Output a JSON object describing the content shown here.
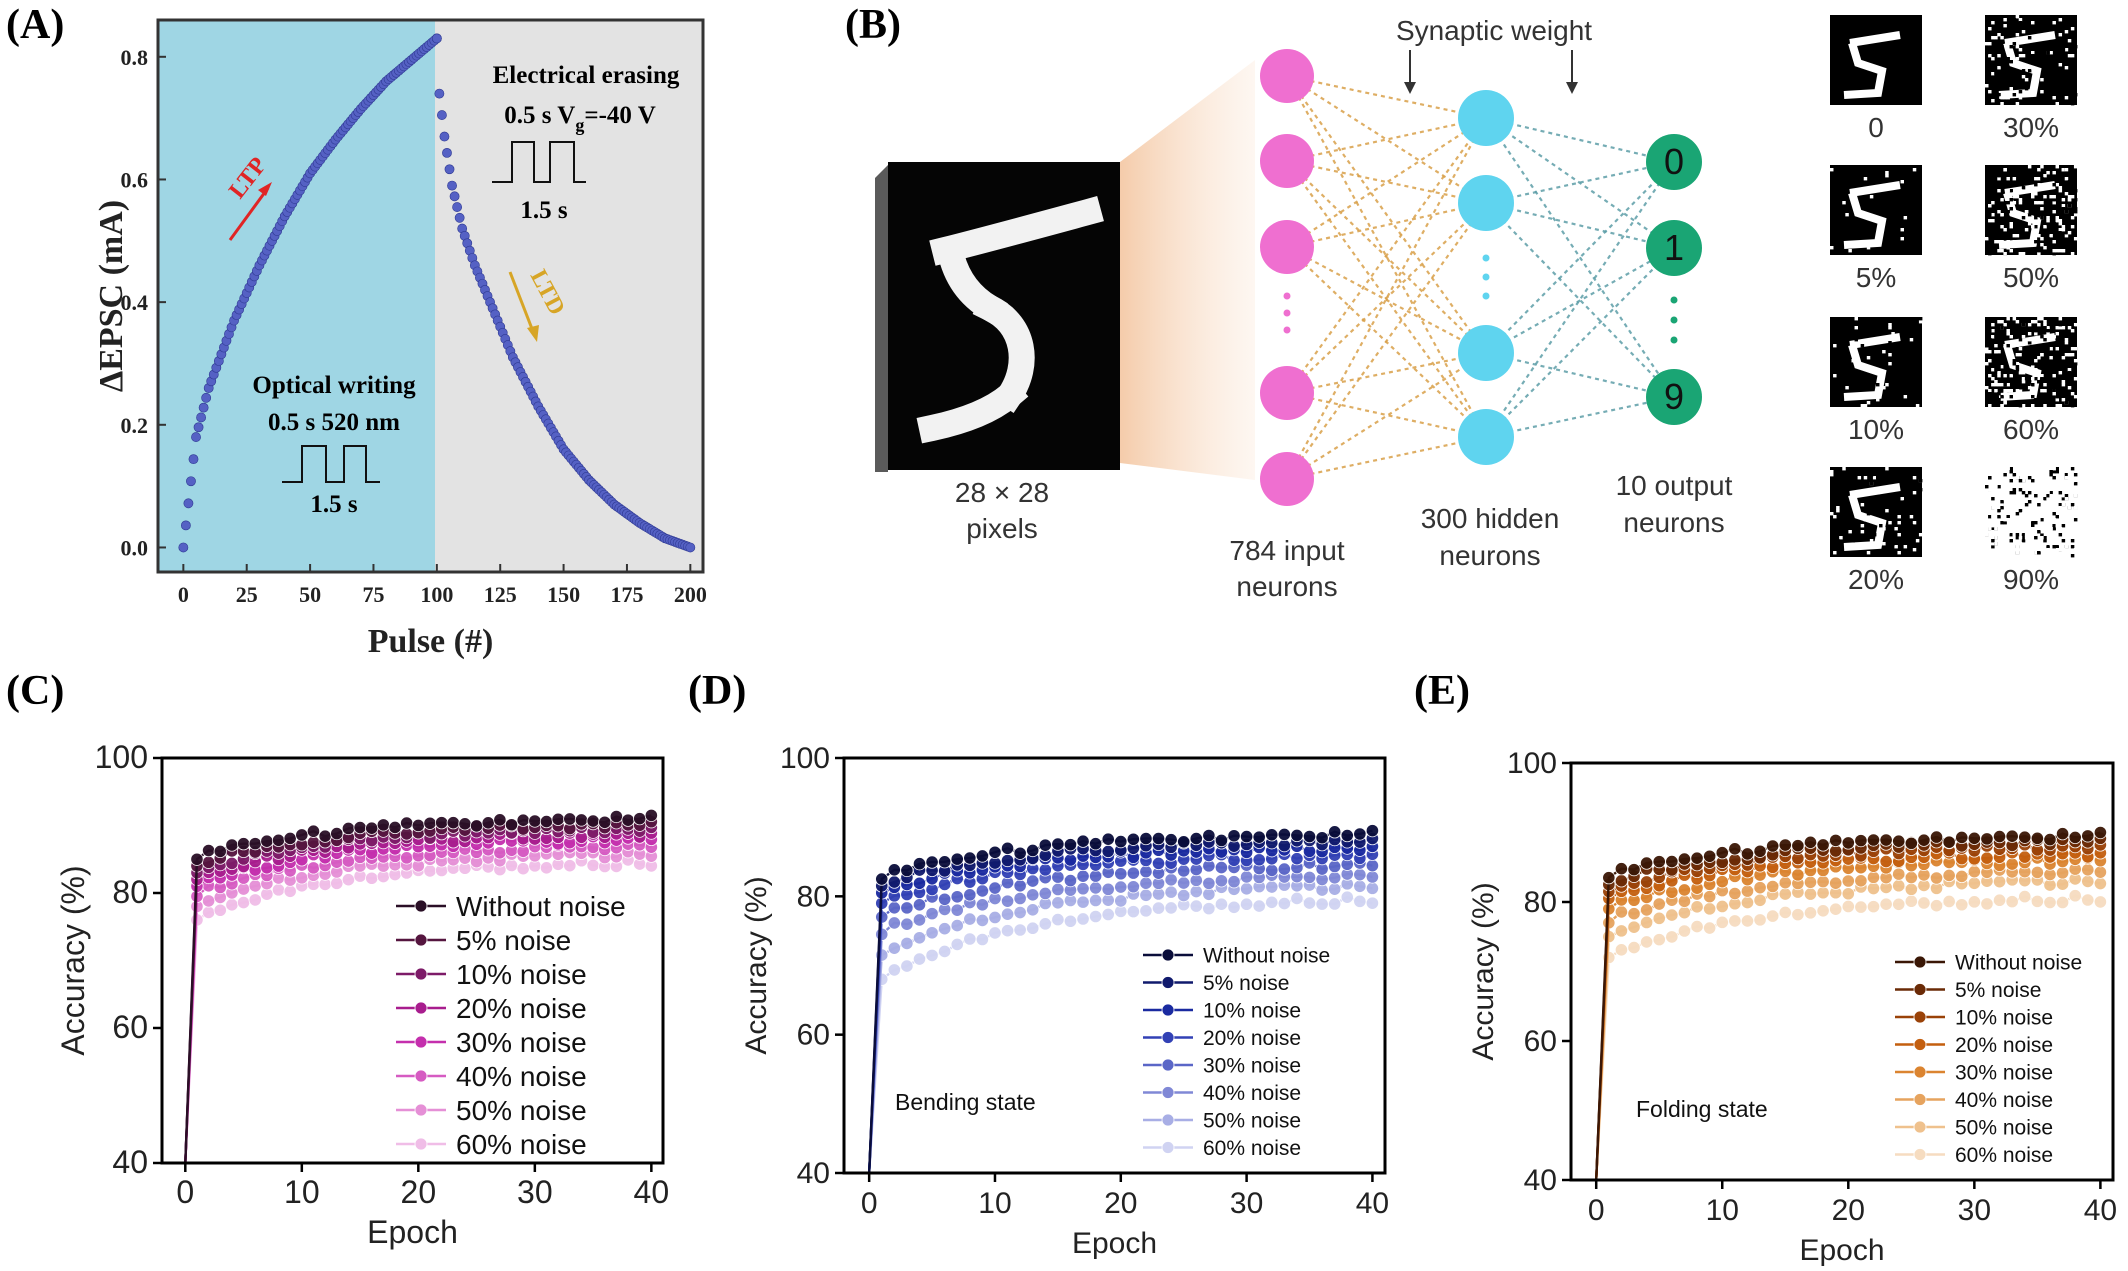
{
  "panels": {
    "A": {
      "letter": "(A)"
    },
    "B": {
      "letter": "(B)"
    },
    "C": {
      "letter": "(C)"
    },
    "D": {
      "letter": "(D)"
    },
    "E": {
      "letter": "(E)"
    }
  },
  "panel_a": {
    "ltp_label": "LTP",
    "ltd_label": "LTD",
    "optical": {
      "title": "Optical writing",
      "params": "0.5 s  520 nm",
      "period": "1.5 s"
    },
    "electrical": {
      "title": "Electrical erasing",
      "params_pre": "0.5 s  V",
      "params_sub": "g",
      "params_post": "=-40 V",
      "period": "1.5 s"
    },
    "colors": {
      "ltp_region": "#9fd6e4",
      "ltd_region": "#e3e3e3",
      "points": "#5561c4",
      "ltp_arrow": "#e02525",
      "ltd_arrow": "#d7a526"
    }
  },
  "panel_b": {
    "synaptic_weight": "Synaptic weight",
    "pixels_label": [
      "28 × 28",
      "pixels"
    ],
    "input_label": [
      "784 input",
      "neurons"
    ],
    "hidden_label": [
      "300 hidden",
      "neurons"
    ],
    "output_label": [
      "10 output",
      "neurons"
    ],
    "output_digits": [
      "0",
      "1",
      "9"
    ],
    "noise_labels": [
      "0",
      "30%",
      "5%",
      "50%",
      "10%",
      "60%",
      "20%",
      "90%"
    ],
    "colors": {
      "input": "#ef6fd0",
      "hidden": "#5fd4ef",
      "output": "#1aa574"
    }
  },
  "chart_data": [
    {
      "panel": "A",
      "type": "scatter",
      "xlabel": "Pulse (#)",
      "ylabel": "ΔEPSC (mA)",
      "xlim": [
        -10,
        205
      ],
      "ylim": [
        -0.04,
        0.86
      ],
      "xticks": [
        0,
        25,
        50,
        75,
        100,
        125,
        150,
        175,
        200
      ],
      "yticks": [
        0.0,
        0.2,
        0.4,
        0.6,
        0.8
      ],
      "ytick_labels": [
        "0.0",
        "0.2",
        "0.4",
        "0.6",
        "0.8"
      ],
      "series": [
        {
          "name": "LTP",
          "points": [
            [
              0,
              0.0
            ],
            [
              5,
              0.18
            ],
            [
              10,
              0.26
            ],
            [
              20,
              0.37
            ],
            [
              30,
              0.46
            ],
            [
              40,
              0.54
            ],
            [
              50,
              0.61
            ],
            [
              60,
              0.665
            ],
            [
              70,
              0.715
            ],
            [
              80,
              0.76
            ],
            [
              90,
              0.795
            ],
            [
              100,
              0.83
            ]
          ]
        },
        {
          "name": "LTD",
          "points": [
            [
              100,
              0.83
            ],
            [
              101,
              0.74
            ],
            [
              103,
              0.67
            ],
            [
              106,
              0.59
            ],
            [
              110,
              0.52
            ],
            [
              115,
              0.46
            ],
            [
              120,
              0.41
            ],
            [
              125,
              0.36
            ],
            [
              130,
              0.31
            ],
            [
              140,
              0.23
            ],
            [
              150,
              0.16
            ],
            [
              160,
              0.11
            ],
            [
              170,
              0.07
            ],
            [
              180,
              0.04
            ],
            [
              190,
              0.015
            ],
            [
              200,
              0.0
            ]
          ]
        }
      ]
    },
    {
      "panel": "C",
      "type": "line",
      "xlabel": "Epoch",
      "ylabel": "Accuracy (%)",
      "xlim": [
        -2,
        41
      ],
      "ylim": [
        40,
        100
      ],
      "xticks": [
        0,
        10,
        20,
        30,
        40
      ],
      "yticks": [
        40,
        60,
        80,
        100
      ],
      "annotation": "",
      "series": [
        {
          "name": "Without noise",
          "color": "#2a0f26",
          "start": 85.5,
          "end": 91.0
        },
        {
          "name": "5% noise",
          "color": "#55153f",
          "start": 84.5,
          "end": 90.2
        },
        {
          "name": "10% noise",
          "color": "#7d1b68",
          "start": 83.5,
          "end": 89.5
        },
        {
          "name": "20% noise",
          "color": "#a81d8e",
          "start": 82.5,
          "end": 88.8
        },
        {
          "name": "30% noise",
          "color": "#c42fad",
          "start": 81.5,
          "end": 88.0
        },
        {
          "name": "40% noise",
          "color": "#d65bc2",
          "start": 80.0,
          "end": 87.0
        },
        {
          "name": "50% noise",
          "color": "#e58fd6",
          "start": 78.5,
          "end": 85.8
        },
        {
          "name": "60% noise",
          "color": "#f0bde7",
          "start": 76.5,
          "end": 84.5
        }
      ]
    },
    {
      "panel": "D",
      "type": "line",
      "xlabel": "Epoch",
      "ylabel": "Accuracy (%)",
      "xlim": [
        -2,
        41
      ],
      "ylim": [
        40,
        100
      ],
      "xticks": [
        0,
        10,
        20,
        30,
        40
      ],
      "yticks": [
        40,
        60,
        80,
        100
      ],
      "annotation": "Bending state",
      "series": [
        {
          "name": "Without noise",
          "color": "#0a0d3a",
          "start": 83.0,
          "end": 89.0
        },
        {
          "name": "5% noise",
          "color": "#101a6d",
          "start": 82.0,
          "end": 88.0
        },
        {
          "name": "10% noise",
          "color": "#1a2aa0",
          "start": 81.0,
          "end": 87.0
        },
        {
          "name": "20% noise",
          "color": "#3241b5",
          "start": 79.5,
          "end": 86.0
        },
        {
          "name": "30% noise",
          "color": "#5a66c7",
          "start": 77.5,
          "end": 84.5
        },
        {
          "name": "40% noise",
          "color": "#8088d6",
          "start": 75.0,
          "end": 83.0
        },
        {
          "name": "50% noise",
          "color": "#a8aee5",
          "start": 72.0,
          "end": 81.5
        },
        {
          "name": "60% noise",
          "color": "#d0d3f2",
          "start": 68.5,
          "end": 79.5
        }
      ]
    },
    {
      "panel": "E",
      "type": "line",
      "xlabel": "Epoch",
      "ylabel": "Accuracy (%)",
      "xlim": [
        -2,
        41
      ],
      "ylim": [
        40,
        100
      ],
      "xticks": [
        0,
        10,
        20,
        30,
        40
      ],
      "yticks": [
        40,
        60,
        80,
        100
      ],
      "annotation": "Folding state",
      "series": [
        {
          "name": "Without noise",
          "color": "#3a1706",
          "start": 84.0,
          "end": 89.5
        },
        {
          "name": "5% noise",
          "color": "#6a2a06",
          "start": 83.0,
          "end": 88.8
        },
        {
          "name": "10% noise",
          "color": "#9a4208",
          "start": 82.0,
          "end": 88.0
        },
        {
          "name": "20% noise",
          "color": "#c45f0f",
          "start": 81.0,
          "end": 87.0
        },
        {
          "name": "30% noise",
          "color": "#db8430",
          "start": 79.5,
          "end": 86.0
        },
        {
          "name": "40% noise",
          "color": "#e6a35e",
          "start": 77.5,
          "end": 84.5
        },
        {
          "name": "50% noise",
          "color": "#efc18d",
          "start": 75.5,
          "end": 83.0
        },
        {
          "name": "60% noise",
          "color": "#f6dcc0",
          "start": 72.5,
          "end": 80.5
        }
      ]
    }
  ]
}
